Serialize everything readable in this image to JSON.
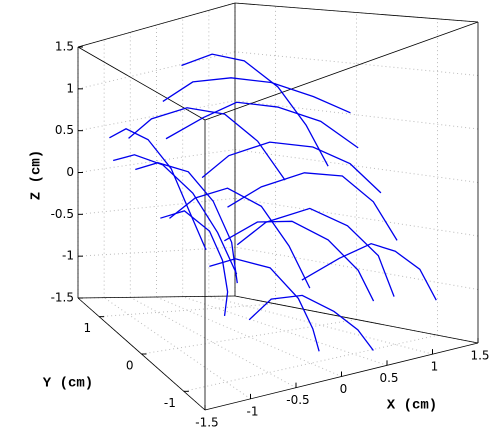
{
  "chart_data": {
    "type": "line3d",
    "x_label": "X (cm)",
    "y_label": "Y (cm)",
    "z_label": "Z (cm)",
    "xlim": [
      -1.5,
      1.5
    ],
    "ylim": [
      -1.5,
      1.5
    ],
    "zlim": [
      -1.5,
      1.5
    ],
    "xticks": [
      -1.5,
      -1,
      -0.5,
      0,
      0.5,
      1,
      1.5
    ],
    "yticks": [
      -1,
      0,
      1
    ],
    "zticks": [
      -1.5,
      -1,
      -0.5,
      0,
      0.5,
      1,
      1.5
    ],
    "grid": true,
    "color": "#0000ee",
    "series": [
      {
        "x": [
          -0.6,
          -0.3,
          0.1,
          0.5,
          0.9,
          1.2
        ],
        "y": [
          0.8,
          0.6,
          0.4,
          0.2,
          0.0,
          -0.2
        ],
        "z": [
          0.9,
          1.1,
          1.1,
          1.0,
          0.8,
          0.6
        ]
      },
      {
        "x": [
          -0.8,
          -0.4,
          0.0,
          0.4,
          0.8,
          1.1
        ],
        "y": [
          0.5,
          0.3,
          0.2,
          0.0,
          -0.2,
          -0.4
        ],
        "z": [
          0.6,
          0.8,
          0.9,
          0.8,
          0.6,
          0.3
        ]
      },
      {
        "x": [
          -0.5,
          -0.2,
          0.2,
          0.6,
          0.9,
          1.1
        ],
        "y": [
          0.2,
          0.1,
          -0.1,
          -0.3,
          -0.5,
          -0.7
        ],
        "z": [
          0.2,
          0.4,
          0.5,
          0.4,
          0.2,
          -0.1
        ]
      },
      {
        "x": [
          -1.0,
          -0.7,
          -0.3,
          0.1,
          0.4,
          0.6
        ],
        "y": [
          1.0,
          0.9,
          0.7,
          0.5,
          0.3,
          0.1
        ],
        "z": [
          0.5,
          0.7,
          0.8,
          0.7,
          0.4,
          0.0
        ]
      },
      {
        "x": [
          -0.3,
          0.0,
          0.4,
          0.8,
          1.1,
          1.3
        ],
        "y": [
          0.0,
          -0.2,
          -0.4,
          -0.5,
          -0.6,
          -0.7
        ],
        "z": [
          -0.1,
          0.1,
          0.2,
          0.1,
          -0.2,
          -0.6
        ]
      },
      {
        "x": [
          -0.9,
          -0.6,
          -0.3,
          0.0,
          0.2,
          0.3
        ],
        "y": [
          0.3,
          0.2,
          0.0,
          -0.2,
          -0.4,
          -0.6
        ],
        "z": [
          -0.2,
          0.0,
          0.1,
          -0.1,
          -0.5,
          -0.9
        ]
      },
      {
        "x": [
          -0.4,
          -0.1,
          0.3,
          0.6,
          0.8,
          0.9
        ],
        "y": [
          -0.3,
          -0.4,
          -0.6,
          -0.8,
          -1.0,
          -1.1
        ],
        "z": [
          -0.4,
          -0.2,
          -0.1,
          -0.3,
          -0.6,
          -1.0
        ]
      },
      {
        "x": [
          -1.2,
          -1.0,
          -0.7,
          -0.5,
          -0.4,
          -0.4
        ],
        "y": [
          0.6,
          0.4,
          0.2,
          0.0,
          -0.2,
          -0.3
        ],
        "z": [
          0.3,
          0.4,
          0.3,
          0.0,
          -0.4,
          -0.8
        ]
      },
      {
        "x": [
          -0.7,
          -0.5,
          -0.2,
          0.0,
          0.1,
          0.1
        ],
        "y": [
          -0.2,
          -0.4,
          -0.6,
          -0.8,
          -0.9,
          -1.0
        ],
        "z": [
          -0.6,
          -0.5,
          -0.6,
          -0.9,
          -1.2,
          -1.4
        ]
      },
      {
        "x": [
          0.0,
          0.3,
          0.6,
          0.9,
          1.1,
          1.2
        ],
        "y": [
          0.4,
          0.2,
          0.0,
          -0.2,
          -0.4,
          -0.5
        ],
        "z": [
          -0.6,
          -0.4,
          -0.4,
          -0.6,
          -0.9,
          -1.2
        ]
      },
      {
        "x": [
          -1.1,
          -0.9,
          -0.6,
          -0.3,
          -0.1,
          0.0
        ],
        "y": [
          1.2,
          1.0,
          0.8,
          0.6,
          0.4,
          0.2
        ],
        "z": [
          0.2,
          0.3,
          0.2,
          -0.1,
          -0.5,
          -0.9
        ]
      },
      {
        "x": [
          -0.2,
          0.1,
          0.4,
          0.7,
          0.9,
          1.0
        ],
        "y": [
          0.9,
          0.7,
          0.5,
          0.3,
          0.1,
          -0.1
        ],
        "z": [
          1.2,
          1.3,
          1.2,
          0.9,
          0.5,
          0.1
        ]
      },
      {
        "x": [
          -1.3,
          -1.1,
          -0.9,
          -0.8,
          -0.8,
          -0.9
        ],
        "y": [
          -0.1,
          -0.3,
          -0.5,
          -0.6,
          -0.7,
          -0.8
        ],
        "z": [
          0.0,
          0.1,
          -0.1,
          -0.4,
          -0.7,
          -0.9
        ]
      },
      {
        "x": [
          0.2,
          0.5,
          0.8,
          1.0,
          1.2,
          1.3
        ],
        "y": [
          -0.6,
          -0.8,
          -0.9,
          -1.0,
          -1.1,
          -1.2
        ],
        "z": [
          -0.8,
          -0.6,
          -0.5,
          -0.6,
          -0.8,
          -1.1
        ]
      },
      {
        "x": [
          -0.6,
          -0.4,
          -0.1,
          0.2,
          0.4,
          0.5
        ],
        "y": [
          -0.8,
          -0.9,
          -1.0,
          -1.1,
          -1.2,
          -1.3
        ],
        "z": [
          -1.0,
          -0.8,
          -0.8,
          -1.0,
          -1.2,
          -1.4
        ]
      },
      {
        "x": [
          -1.4,
          -1.2,
          -1.0,
          -0.8,
          -0.7,
          -0.6
        ],
        "y": [
          0.9,
          0.8,
          0.6,
          0.4,
          0.2,
          0.0
        ],
        "z": [
          0.6,
          0.7,
          0.6,
          0.3,
          -0.1,
          -0.5
        ]
      }
    ]
  }
}
